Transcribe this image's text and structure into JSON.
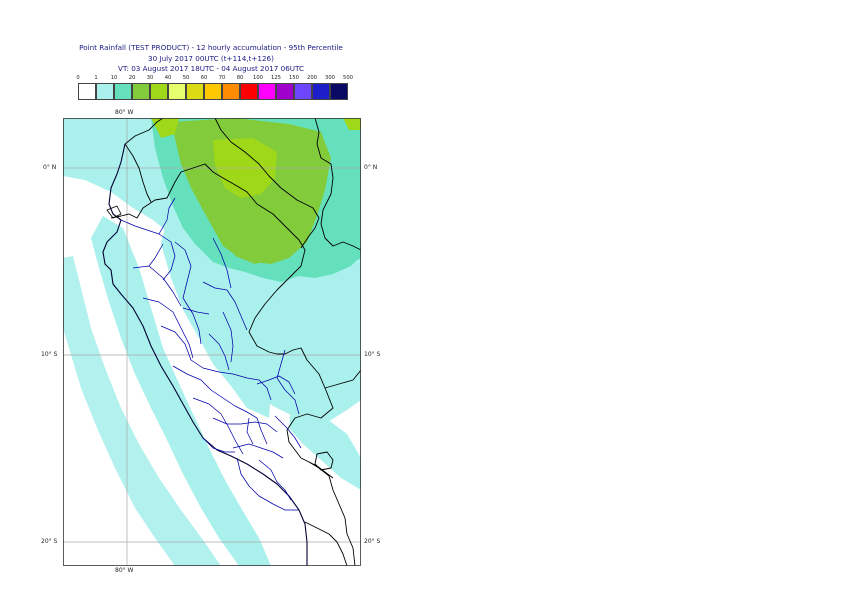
{
  "header": {
    "title": "Point Rainfall (TEST PRODUCT) - 12 hourly accumulation - 95th Percentile",
    "base_time": "30 July 2017 00UTC (t+114,t+126)",
    "valid_time": "VT: 03 August 2017 18UTC - 04 August 2017 06UTC"
  },
  "legend": {
    "labels": [
      "0",
      "1",
      "10",
      "20",
      "30",
      "40",
      "50",
      "60",
      "70",
      "80",
      "100",
      "125",
      "150",
      "200",
      "300",
      "500"
    ],
    "colors": [
      "#ffffff",
      "#aaf0ec",
      "#64e0bc",
      "#82cc3c",
      "#9ed818",
      "#e6ff6e",
      "#dcdc14",
      "#ffc800",
      "#ff8c00",
      "#ff0000",
      "#ff00ff",
      "#a000cc",
      "#6e46ff",
      "#1e1ec8",
      "#0a0a64"
    ]
  },
  "map": {
    "lon_labels": {
      "top": "80° W",
      "bottom": "80° W"
    },
    "lat_labels": {
      "left": [
        "0° N",
        "10° S",
        "20° S"
      ],
      "right": [
        "0° N",
        "10° S",
        "20° S"
      ]
    },
    "colors": {
      "land_border": "#000000",
      "admin_border": "#0000aa",
      "grid": "#a8a8a8",
      "coast": "#000033"
    }
  }
}
